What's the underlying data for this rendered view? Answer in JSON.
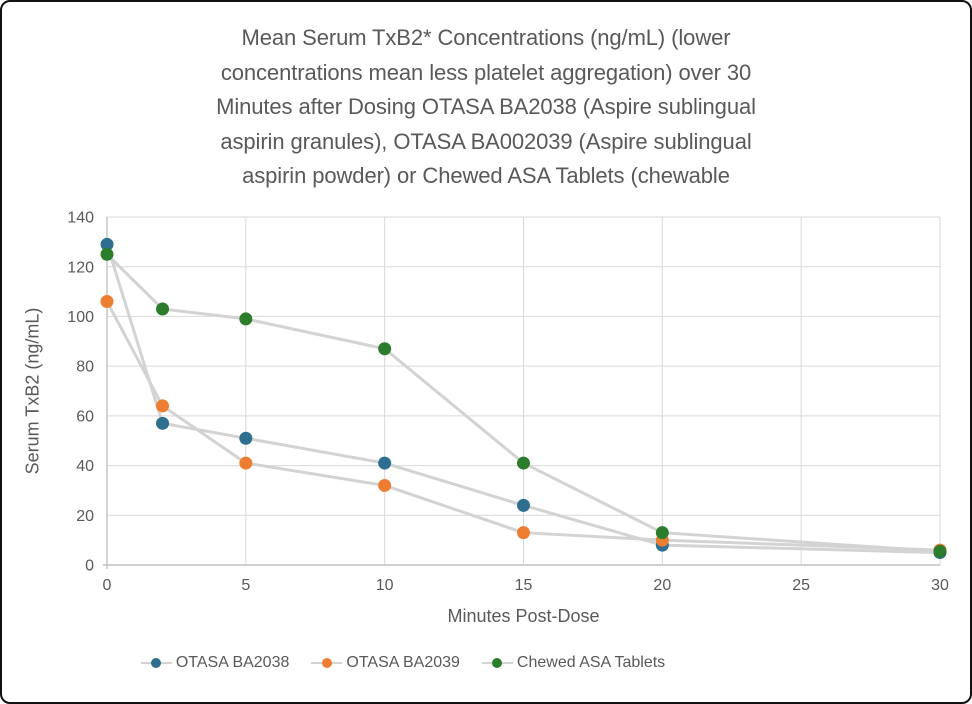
{
  "frame": {
    "background": "#ffffff",
    "border_color": "#111111"
  },
  "chart_data": {
    "type": "line",
    "title": "Mean Serum TxB2* Concentrations (ng/mL) (lower concentrations mean less platelet aggregation) over 30 Minutes after Dosing OTASA BA2038 (Aspire sublingual aspirin granules), OTASA BA002039 (Aspire sublingual aspirin powder) or Chewed ASA Tablets (chewable",
    "title_lines": [
      "Mean Serum TxB2* Concentrations (ng/mL) (lower",
      "concentrations mean less platelet aggregation) over 30",
      "Minutes after Dosing OTASA BA2038 (Aspire sublingual",
      "aspirin granules), OTASA BA002039 (Aspire sublingual",
      "aspirin powder) or Chewed ASA Tablets (chewable"
    ],
    "xlabel": "Minutes Post-Dose",
    "ylabel": "Serum TxB2 (ng/mL)",
    "x": [
      0,
      2,
      5,
      10,
      15,
      20,
      30
    ],
    "series": [
      {
        "name": "OTASA BA2038",
        "color": "#2e6e8e",
        "values": [
          129,
          57,
          51,
          41,
          24,
          8,
          5
        ]
      },
      {
        "name": "OTASA BA2039",
        "color": "#ed7d31",
        "values": [
          106,
          64,
          41,
          32,
          13,
          10,
          6
        ]
      },
      {
        "name": "Chewed ASA Tablets",
        "color": "#2b7c2b",
        "values": [
          125,
          103,
          99,
          87,
          41,
          13,
          5.5
        ]
      }
    ],
    "xlim": [
      0,
      30
    ],
    "ylim": [
      0,
      140
    ],
    "xticks": [
      0,
      5,
      10,
      15,
      20,
      25,
      30
    ],
    "yticks": [
      0,
      20,
      40,
      60,
      80,
      100,
      120,
      140
    ],
    "grid": true,
    "legend_position": "bottom",
    "line_color": "#d3d3d3",
    "gridline_color": "#d9d9d9",
    "axis_color": "#c2c2c2",
    "text_color": "#595959"
  }
}
